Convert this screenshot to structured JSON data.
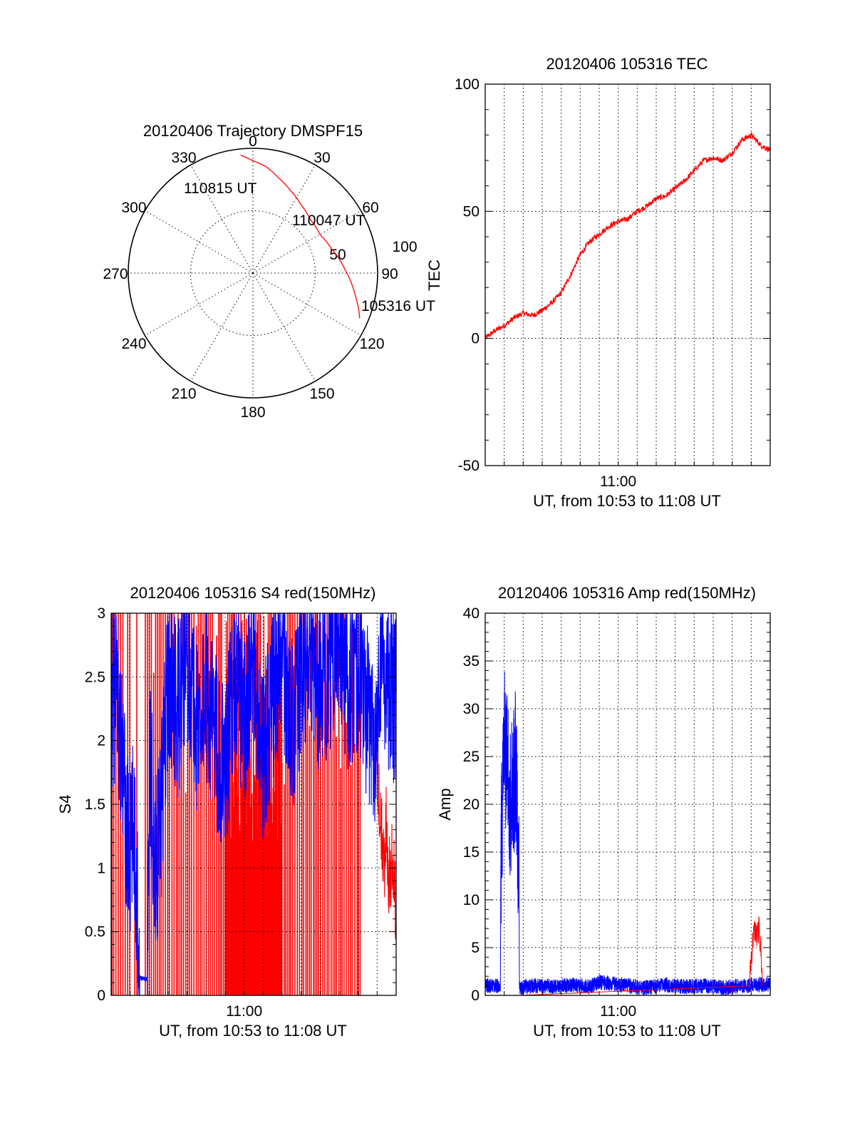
{
  "colors": {
    "red": "#ff0000",
    "blue": "#0000ff",
    "ink": "#000000"
  },
  "chart_data": [
    {
      "id": "trajectory",
      "type": "polar",
      "title": "20120406 Trajectory DMSPF15",
      "azimuth_labels": [
        "0",
        "30",
        "60",
        "90",
        "120",
        "150",
        "180",
        "210",
        "240",
        "270",
        "300",
        "330"
      ],
      "radial_labels": [
        {
          "text": "50",
          "value": 50
        },
        {
          "text": "100",
          "value": 100
        }
      ],
      "radial_max": 100,
      "track": [
        {
          "az": 113,
          "r": 93
        },
        {
          "az": 101,
          "r": 83
        },
        {
          "az": 88,
          "r": 74
        },
        {
          "az": 73,
          "r": 66
        },
        {
          "az": 60,
          "r": 62
        },
        {
          "az": 47,
          "r": 63
        },
        {
          "az": 35,
          "r": 67
        },
        {
          "az": 24,
          "r": 73
        },
        {
          "az": 15,
          "r": 79
        },
        {
          "az": 7,
          "r": 86
        },
        {
          "az": 0,
          "r": 90
        },
        {
          "az": -6,
          "r": 95
        }
      ],
      "annotations": [
        {
          "text": "110815 UT",
          "az": -6,
          "r": 95
        },
        {
          "text": "110047 UT",
          "az": 50,
          "r": 62
        },
        {
          "text": "105316 UT",
          "az": 113,
          "r": 93
        }
      ]
    },
    {
      "id": "tec",
      "type": "line",
      "title": "20120406 105316 TEC",
      "xlabel": "UT, from 10:53 to 11:08 UT",
      "ylabel": "TEC",
      "xlim": [
        0,
        15
      ],
      "ylim": [
        -50,
        100
      ],
      "yticks": [
        -50,
        0,
        50,
        100
      ],
      "xtick_labels": [
        {
          "x": 7,
          "label": "11:00"
        }
      ],
      "grid": true,
      "series": [
        {
          "color": "#ff0000",
          "x": [
            0,
            0.5,
            1,
            1.5,
            2,
            2.5,
            3,
            3.5,
            4,
            4.5,
            5,
            5.5,
            6,
            6.5,
            7,
            7.5,
            8,
            8.5,
            9,
            9.5,
            10,
            10.5,
            11,
            11.5,
            12,
            12.5,
            13,
            13.5,
            14,
            14.5,
            15
          ],
          "y": [
            0,
            3,
            5,
            8,
            10,
            9,
            11,
            14,
            18,
            25,
            33,
            38,
            41,
            44,
            46,
            47,
            50,
            52,
            55,
            56,
            59,
            62,
            66,
            70,
            71,
            70,
            73,
            78,
            80,
            76,
            74
          ]
        }
      ]
    },
    {
      "id": "s4",
      "type": "line",
      "title": "20120406 105316 S4 red(150MHz)",
      "xlabel": "UT, from 10:53 to 11:08 UT",
      "ylabel": "S4",
      "xlim": [
        0,
        15
      ],
      "ylim": [
        0,
        3
      ],
      "yticks": [
        0,
        0.5,
        1,
        1.5,
        2,
        2.5,
        3
      ],
      "xtick_labels": [
        {
          "x": 7,
          "label": "11:00"
        }
      ],
      "grid": true,
      "series": [
        {
          "color": "#0000ff",
          "x": [
            0,
            0.3,
            0.6,
            0.8,
            1,
            1.2,
            1.5,
            1.9,
            2.05,
            2.3,
            2.6,
            2.8,
            3,
            3.5,
            4,
            4.5,
            5,
            5.5,
            6,
            6.5,
            7,
            7.5,
            8,
            8.5,
            9,
            9.5,
            10,
            10.5,
            11,
            11.5,
            12,
            12.5,
            13,
            13.5,
            14,
            14.2,
            14.5,
            15
          ],
          "y": [
            2.3,
            2.4,
            1.8,
            1.3,
            1.05,
            1.4,
            0.14,
            0.13,
            1.9,
            1.0,
            1.3,
            2.0,
            2.5,
            2.2,
            2.7,
            2.1,
            2.4,
            2.0,
            1.8,
            2.5,
            2.2,
            2.6,
            1.9,
            2.3,
            2.7,
            2.1,
            2.5,
            2.8,
            2.4,
            2.6,
            2.9,
            2.4,
            2.6,
            2.2,
            2.0,
            2.8,
            2.5,
            2.3
          ]
        },
        {
          "color": "#ff0000",
          "x": [
            14,
            14.1,
            14.2,
            14.3,
            14.4,
            14.5,
            14.6,
            14.7,
            14.8,
            14.9,
            15
          ],
          "y": [
            1.7,
            1.5,
            1.3,
            1.2,
            1.1,
            1.4,
            1.0,
            0.9,
            1.2,
            1.0,
            0.5
          ]
        }
      ]
    },
    {
      "id": "amp",
      "type": "line",
      "title": "20120406 105316 Amp red(150MHz)",
      "xlabel": "UT, from 10:53 to 11:08 UT",
      "ylabel": "Amp",
      "xlim": [
        0,
        15
      ],
      "ylim": [
        0,
        40
      ],
      "yticks": [
        0,
        5,
        10,
        15,
        20,
        25,
        30,
        35,
        40
      ],
      "xtick_labels": [
        {
          "x": 7,
          "label": "11:00"
        }
      ],
      "grid": true,
      "series": [
        {
          "color": "#0000ff",
          "x": [
            0,
            0.4,
            0.8,
            0.82,
            1.0,
            1.3,
            1.6,
            1.78,
            1.8,
            2.5,
            3.5,
            4.5,
            5.5,
            6.0,
            7.5,
            8.5,
            9.5,
            10.5,
            11.5,
            12.5,
            13.5,
            14.5,
            15
          ],
          "y": [
            1,
            1,
            1,
            14,
            27,
            20,
            24,
            13,
            0.8,
            1,
            0.9,
            1.1,
            0.9,
            1.4,
            1,
            0.8,
            1.1,
            0.9,
            1,
            0.8,
            1,
            1.1,
            1.2
          ]
        },
        {
          "color": "#ff0000",
          "x": [
            0.82,
            1.8,
            13.9,
            14.0,
            14.1,
            14.2,
            14.3,
            14.4,
            14.5,
            14.6
          ],
          "y": [
            0,
            0,
            1,
            4,
            6,
            7,
            6,
            7,
            5,
            1
          ]
        }
      ]
    }
  ]
}
